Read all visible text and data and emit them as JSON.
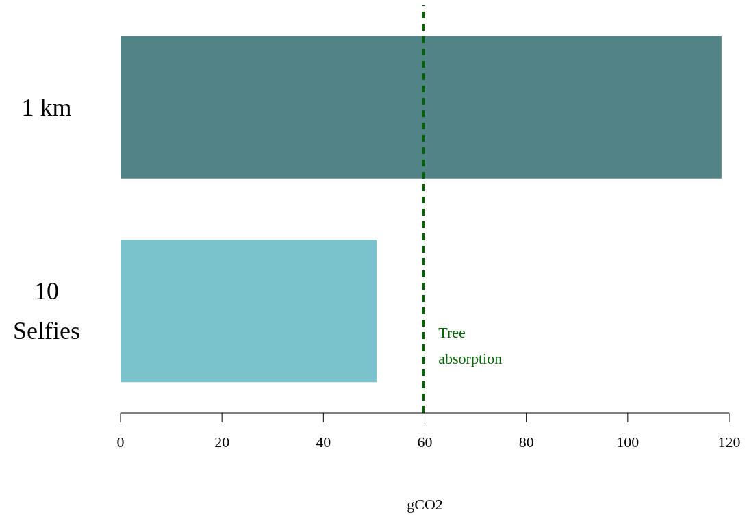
{
  "chart_data": {
    "type": "bar",
    "orientation": "horizontal",
    "categories": [
      "1 km",
      "10 Selfies"
    ],
    "values": [
      118.5,
      50.5
    ],
    "colors": [
      "#528386",
      "#7bc3cc"
    ],
    "xlabel": "gCO2",
    "xlim": [
      0,
      120
    ],
    "xticks": [
      0,
      20,
      40,
      60,
      80,
      100,
      120
    ],
    "grid": false,
    "legend": false,
    "ref_lines": [
      {
        "axis": "x",
        "value": 59.7,
        "label": "Tree absorption",
        "color": "#006400",
        "line_style": "dashed"
      }
    ]
  }
}
